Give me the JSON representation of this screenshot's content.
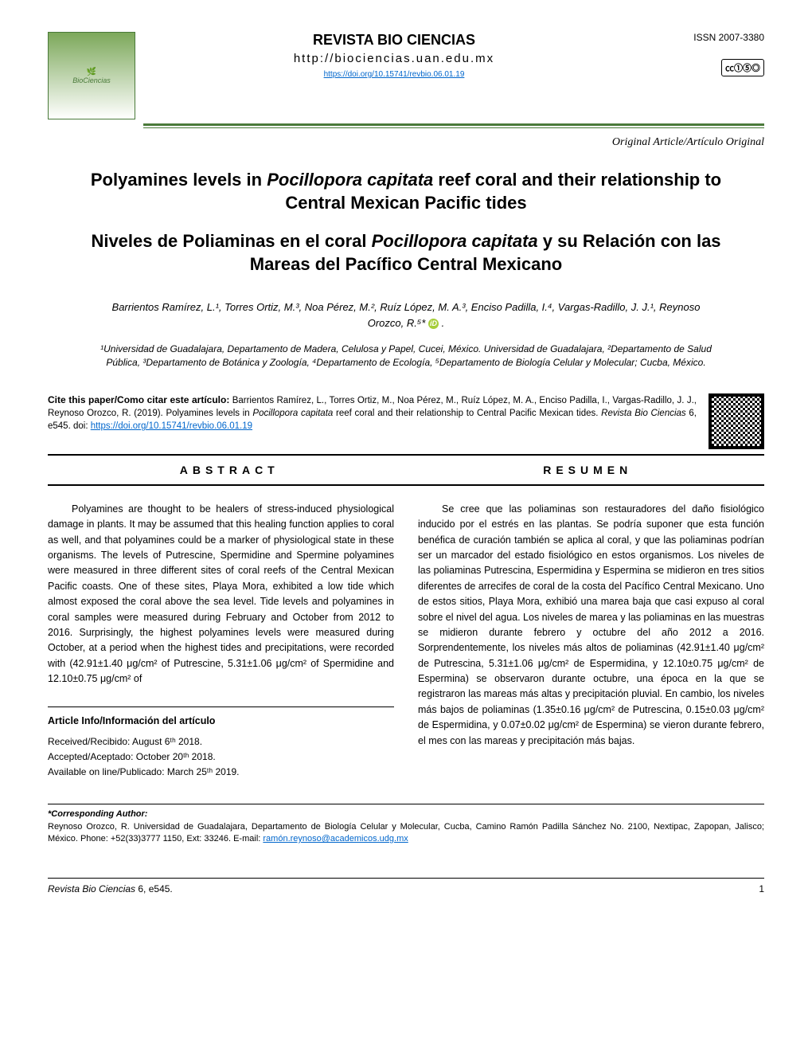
{
  "header": {
    "journal_title": "REVISTA BIO CIENCIAS",
    "journal_url": "http://biociencias.uan.edu.mx",
    "doi_link": "https://doi.org/10.15741/revbio.06.01.19",
    "issn": "ISSN 2007-3380",
    "cc_label": "CC BY NC ND",
    "article_type": "Original Article/Artículo  Original"
  },
  "titles": {
    "en_part1": "Polyamines levels in ",
    "en_species": "Pocillopora capitata",
    "en_part2": " reef coral and their relationship to Central Mexican Pacific tides",
    "es_part1": "Niveles de Poliaminas en el coral ",
    "es_species": "Pocillopora capitata",
    "es_part2": " y su Relación con las Mareas del Pacífico Central Mexicano"
  },
  "authors": "Barrientos Ramírez, L.¹, Torres Ortiz, M.³, Noa Pérez, M.², Ruíz López, M. A.³, Enciso Padilla, I.⁴, Vargas-Radillo, J. J.¹, Reynoso Orozco, R.⁵*",
  "affiliations": "¹Universidad de Guadalajara, Departamento de Madera, Celulosa y Papel, Cucei, México. Universidad de Guadalajara, ²Departamento de Salud Pública, ³Departamento de Botánica y Zoología, ⁴Departamento de Ecología, ⁵Departamento de Biología Celular y Molecular;  Cucba, México.",
  "cite": {
    "label": "Cite this paper/Como citar este artículo:",
    "text": " Barrientos Ramírez, L., Torres Ortiz, M., Noa Pérez, M., Ruíz López, M. A., Enciso Padilla, I., Vargas-Radillo, J. J., Reynoso Orozco, R. (2019). Polyamines levels in ",
    "species": "Pocillopora capitata",
    "text2": " reef coral and their relationship to Central Pacific Mexican tides. ",
    "journal": "Revista Bio Ciencias",
    "text3": " 6, e545. doi: ",
    "link": "https://doi.org/10.15741/revbio.06.01.19"
  },
  "sections": {
    "abstract_label": "ABSTRACT",
    "resumen_label": "RESUMEN"
  },
  "abstract": "Polyamines are thought to be healers of stress-induced physiological damage in plants. It may be assumed that this healing function applies to coral as well, and that polyamines could be a marker of physiological state in these organisms. The levels of Putrescine, Spermidine and Spermine polyamines were measured in three different sites of coral reefs of the Central Mexican Pacific coasts. One of these sites, Playa Mora, exhibited a low tide which almost exposed the coral above the sea level. Tide levels and polyamines in coral samples were measured during February and October from 2012 to 2016. Surprisingly, the highest polyamines levels were measured during October, at a period when the highest tides and precipitations, were recorded with (42.91±1.40 μg/cm² of Putrescine, 5.31±1.06 μg/cm² of Spermidine and 12.10±0.75 μg/cm² of",
  "resumen": "Se cree que las poliaminas son restauradores del daño fisiológico inducido por el estrés en las plantas. Se podría suponer que esta función benéfica de curación también se aplica al coral, y que las poliaminas podrían ser un marcador del estado fisiológico en estos organismos. Los niveles de las poliaminas Putrescina, Espermidina y Espermina se midieron en tres sitios diferentes de arrecifes de coral de la costa del Pacífico Central Mexicano. Uno de estos sitios, Playa Mora, exhibió una marea baja que casi expuso al coral sobre el nivel del agua. Los niveles de marea y las poliaminas en las muestras se midieron durante febrero y octubre del año 2012 a 2016. Sorprendentemente, los niveles más altos de poliaminas (42.91±1.40 μg/cm² de Putrescina, 5.31±1.06 μg/cm² de Espermidina, y 12.10±0.75 μg/cm² de Espermina) se observaron durante octubre, una época en la que se registraron las mareas más altas y precipitación pluvial. En cambio, los niveles más bajos de poliaminas (1.35±0.16 μg/cm² de Putrescina, 0.15±0.03 μg/cm² de Espermidina, y 0.07±0.02 μg/cm² de Espermina) se vieron durante febrero, el mes con las mareas y precipitación más bajas.",
  "article_info": {
    "title": "Article Info/Información del artículo",
    "received": "Received/Recibido: August 6ᵗʰ 2018.",
    "accepted": "Accepted/Aceptado: October 20ᵗʰ 2018.",
    "published": "Available on line/Publicado:  March 25ᵗʰ 2019."
  },
  "corresponding": {
    "label": "*Corresponding Author:",
    "text": "Reynoso Orozco, R. Universidad de Guadalajara, Departamento de Biología Celular y Molecular, Cucba, Camino Ramón Padilla Sánchez No. 2100, Nextipac, Zapopan, Jalisco; México. Phone: +52(33)3777 1150, Ext: 33246. E-mail: ",
    "email": "ramón.reynoso@academi­cos.udg.mx"
  },
  "footer": {
    "left_journal": "Revista Bio Ciencias",
    "left_rest": " 6, e545.",
    "page": "1"
  }
}
